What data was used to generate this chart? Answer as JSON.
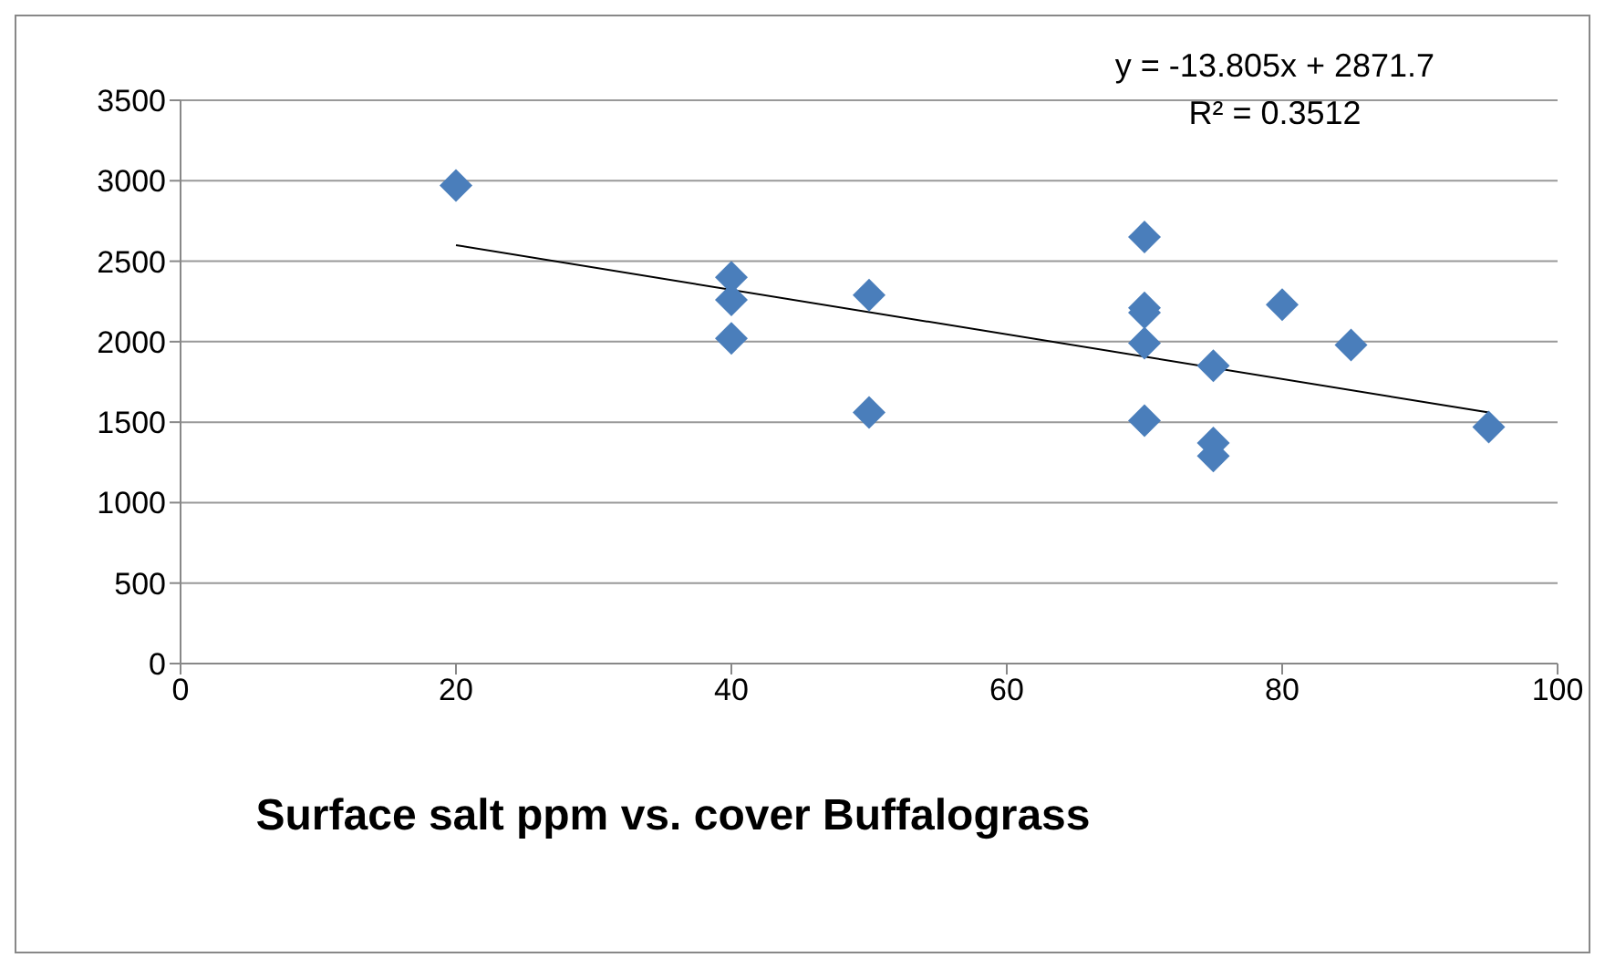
{
  "chart_data": {
    "type": "scatter",
    "title": "Surface salt ppm vs. cover Buffalograss",
    "annotations": [
      "y = -13.805x + 2871.7",
      "R² = 0.3512"
    ],
    "xlim": [
      0,
      100
    ],
    "xticks": [
      0,
      20,
      40,
      60,
      80,
      100
    ],
    "ylim": [
      0,
      3500
    ],
    "yticks": [
      0,
      500,
      1000,
      1500,
      2000,
      2500,
      3000,
      3500
    ],
    "grid": "y",
    "marker": "diamond",
    "series": [
      {
        "color": "#4a7ebb",
        "x": [
          20,
          40,
          40,
          40,
          50,
          50,
          70,
          70,
          70,
          70,
          70,
          75,
          75,
          75,
          80,
          85,
          95
        ],
        "values": [
          2970,
          2400,
          2260,
          2020,
          2290,
          1560,
          2650,
          2210,
          2180,
          1990,
          1510,
          1850,
          1370,
          1290,
          2230,
          1980,
          1470
        ]
      },
      {
        "type": "line",
        "color": "#000000",
        "marker": "none",
        "x": [
          20,
          95
        ],
        "values": [
          2600,
          1560
        ]
      }
    ]
  }
}
